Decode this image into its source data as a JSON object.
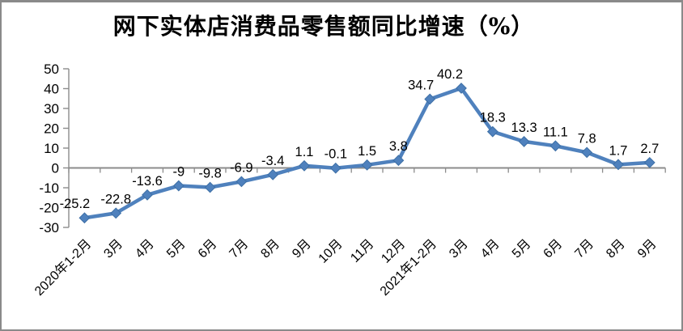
{
  "window": {
    "background": "#ffffff",
    "border_color": "#8a8a8a"
  },
  "chart_data": {
    "type": "line",
    "title": "网下实体店消费品零售额同比增速（%）",
    "categories": [
      "2020年1-2月",
      "3月",
      "4月",
      "5月",
      "6月",
      "7月",
      "8月",
      "9月",
      "10月",
      "11月",
      "12月",
      "2021年1-2月",
      "3月",
      "4月",
      "5月",
      "6月",
      "7月",
      "8月",
      "9月"
    ],
    "values": [
      -25.2,
      -22.8,
      -13.6,
      -9,
      -9.8,
      -6.9,
      -3.4,
      1.1,
      -0.1,
      1.5,
      3.8,
      34.7,
      40.2,
      18.3,
      13.3,
      11.1,
      7.8,
      1.7,
      2.7
    ],
    "point_labels": [
      "-25.2",
      "-22.8",
      "-13.6",
      "-9",
      "-9.8",
      "-6.9",
      "-3.4",
      "1.1",
      "-0.1",
      "1.5",
      "3.8",
      "34.7",
      "40.2",
      "18.3",
      "13.3",
      "11.1",
      "7.8",
      "1.7",
      "2.7"
    ],
    "y_ticks": [
      50,
      40,
      30,
      20,
      10,
      0,
      -10,
      -20,
      -30
    ],
    "ylim": [
      -30,
      50
    ],
    "xlabel": "",
    "ylabel": "",
    "grid": "off",
    "legend": "none",
    "marker": "diamond",
    "colors": {
      "series": "#4f81bd",
      "marker_edge": "#3d6fa5",
      "axis": "#8c8c8c",
      "text": "#000000",
      "title": "#000000"
    }
  }
}
